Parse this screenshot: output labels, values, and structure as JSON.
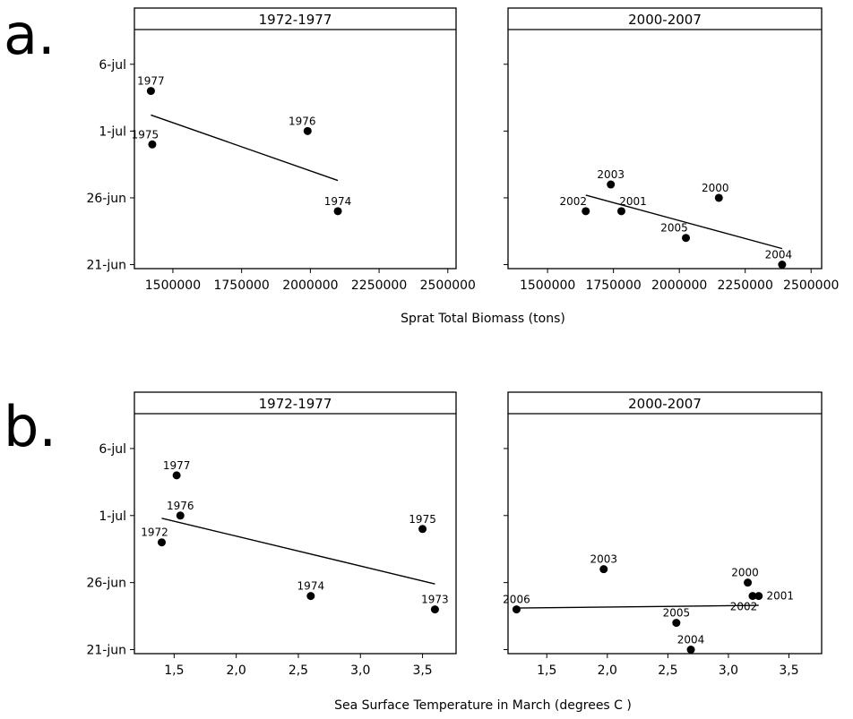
{
  "figure": {
    "panel_a_label": "a.",
    "panel_b_label": "b."
  },
  "chart_data": [
    {
      "type": "scatter",
      "panel": "a",
      "facet_title": "1972-1977",
      "xlabel": "Sprat Total Biomass (tons)",
      "x_ticks": [
        1500000,
        1750000,
        2000000,
        2250000,
        2500000
      ],
      "x_tick_labels": [
        "1500000",
        "1750000",
        "2000000",
        "2250000",
        "2500000"
      ],
      "xlim": [
        1360000,
        2530000
      ],
      "y_ticks": [
        0,
        5,
        10,
        15
      ],
      "y_tick_labels": [
        "21-jun",
        "26-jun",
        "1-jul",
        "6-jul"
      ],
      "ylim": [
        -0.3,
        17.6
      ],
      "points": [
        {
          "label": "1977",
          "x": 1420000,
          "y": 13.0
        },
        {
          "label": "1976",
          "x": 1990000,
          "y": 10.0
        },
        {
          "label": "1975",
          "x": 1425000,
          "y": 9.0
        },
        {
          "label": "1974",
          "x": 2100000,
          "y": 4.0
        }
      ],
      "fit_line": {
        "x": [
          1420000,
          2100000
        ],
        "y": [
          11.2,
          6.3
        ]
      }
    },
    {
      "type": "scatter",
      "panel": "a",
      "facet_title": "2000-2007",
      "xlabel": "Sprat Total Biomass (tons)",
      "x_ticks": [
        1500000,
        1750000,
        2000000,
        2250000,
        2500000
      ],
      "x_tick_labels": [
        "1500000",
        "1750000",
        "2000000",
        "2250000",
        "2500000"
      ],
      "xlim": [
        1350000,
        2540000
      ],
      "y_ticks": [
        0,
        5,
        10,
        15
      ],
      "ylim": [
        -0.3,
        17.6
      ],
      "points": [
        {
          "label": "2003",
          "x": 1740000,
          "y": 6.0
        },
        {
          "label": "2000",
          "x": 2150000,
          "y": 5.0
        },
        {
          "label": "2002",
          "x": 1645000,
          "y": 4.0
        },
        {
          "label": "2001",
          "x": 1780000,
          "y": 4.0
        },
        {
          "label": "2005",
          "x": 2025000,
          "y": 2.0
        },
        {
          "label": "2004",
          "x": 2390000,
          "y": 0.0
        }
      ],
      "fit_line": {
        "x": [
          1645000,
          2390000
        ],
        "y": [
          5.2,
          1.2
        ]
      }
    },
    {
      "type": "scatter",
      "panel": "b",
      "facet_title": "1972-1977",
      "xlabel": "Sea Surface Temperature in March (degrees C )",
      "x_ticks": [
        1.5,
        2.0,
        2.5,
        3.0,
        3.5
      ],
      "x_tick_labels": [
        "1,5",
        "2,0",
        "2,5",
        "3,0",
        "3,5"
      ],
      "xlim": [
        1.18,
        3.77
      ],
      "y_ticks": [
        0,
        5,
        10,
        15
      ],
      "y_tick_labels": [
        "21-jun",
        "26-jun",
        "1-jul",
        "6-jul"
      ],
      "ylim": [
        -0.3,
        17.6
      ],
      "points": [
        {
          "label": "1977",
          "x": 1.52,
          "y": 13.0
        },
        {
          "label": "1976",
          "x": 1.55,
          "y": 10.0
        },
        {
          "label": "1972",
          "x": 1.4,
          "y": 8.0
        },
        {
          "label": "1975",
          "x": 3.5,
          "y": 9.0
        },
        {
          "label": "1974",
          "x": 2.6,
          "y": 4.0
        },
        {
          "label": "1973",
          "x": 3.6,
          "y": 3.0
        }
      ],
      "fit_line": {
        "x": [
          1.4,
          3.6
        ],
        "y": [
          9.8,
          4.9
        ]
      }
    },
    {
      "type": "scatter",
      "panel": "b",
      "facet_title": "2000-2007",
      "xlabel": "Sea Surface Temperature in March (degrees C )",
      "x_ticks": [
        1.5,
        2.0,
        2.5,
        3.0,
        3.5
      ],
      "x_tick_labels": [
        "1,5",
        "2,0",
        "2,5",
        "3,0",
        "3,5"
      ],
      "xlim": [
        1.18,
        3.77
      ],
      "y_ticks": [
        0,
        5,
        10,
        15
      ],
      "ylim": [
        -0.3,
        17.6
      ],
      "points": [
        {
          "label": "2003",
          "x": 1.97,
          "y": 6.0
        },
        {
          "label": "2000",
          "x": 3.16,
          "y": 5.0
        },
        {
          "label": "2001",
          "x": 3.25,
          "y": 4.0
        },
        {
          "label": "2002",
          "x": 3.2,
          "y": 4.0
        },
        {
          "label": "2006",
          "x": 1.25,
          "y": 3.0
        },
        {
          "label": "2005",
          "x": 2.57,
          "y": 2.0
        },
        {
          "label": "2004",
          "x": 2.69,
          "y": 0.0
        }
      ],
      "fit_line": {
        "x": [
          1.25,
          3.25
        ],
        "y": [
          3.1,
          3.3
        ]
      }
    }
  ]
}
